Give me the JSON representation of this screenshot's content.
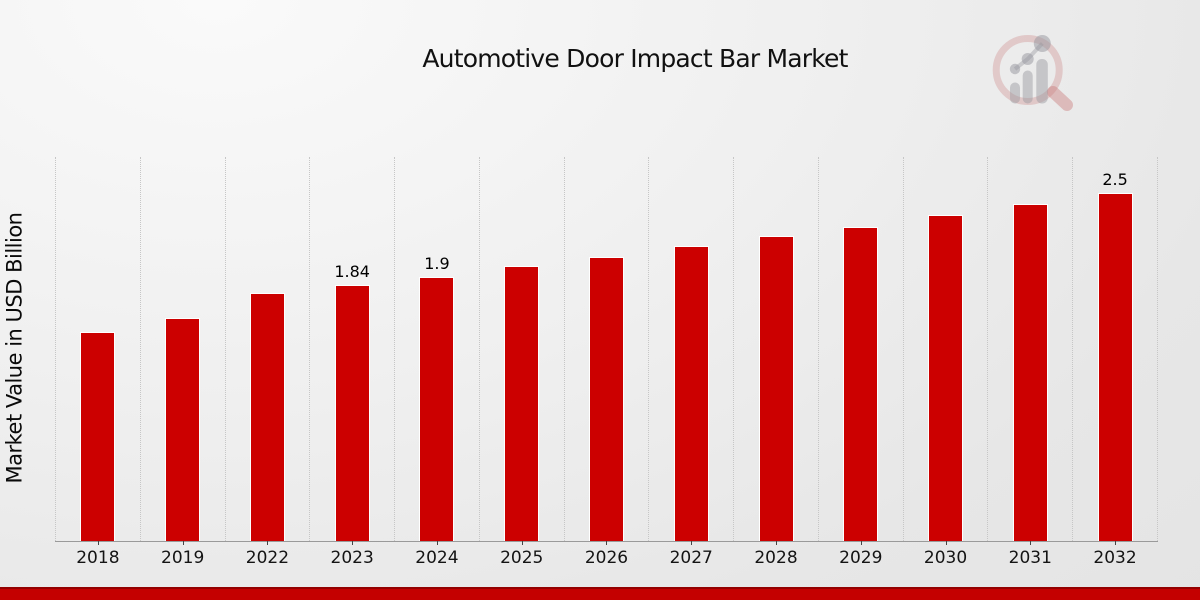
{
  "title": "Automotive Door Impact Bar Market",
  "y_axis_label": "Market Value in USD Billion",
  "watermark": {
    "name": "magnifier-bar-chart-logo"
  },
  "colors": {
    "bar": "#cc0000",
    "footer_band": "#c40000",
    "footer_band_edge": "#940000",
    "background": "#ececec",
    "gridline": "#c6c6c6",
    "axis_line": "#9a9a9a",
    "text": "#111111"
  },
  "chart_data": {
    "type": "bar",
    "title": "Automotive Door Impact Bar Market",
    "xlabel": "",
    "ylabel": "Market Value in USD Billion",
    "categories": [
      "2018",
      "2019",
      "2022",
      "2023",
      "2024",
      "2025",
      "2026",
      "2027",
      "2028",
      "2029",
      "2030",
      "2031",
      "2032"
    ],
    "values": [
      1.5,
      1.6,
      1.78,
      1.84,
      1.9,
      1.98,
      2.04,
      2.12,
      2.19,
      2.26,
      2.34,
      2.42,
      2.5
    ],
    "bar_labels": {
      "2023": "1.84",
      "2024": "1.9",
      "2032": "2.5"
    },
    "ylim": [
      0,
      2.76
    ],
    "grid": "vertical-dotted",
    "legend": "none",
    "bar_color": "#cc0000"
  }
}
